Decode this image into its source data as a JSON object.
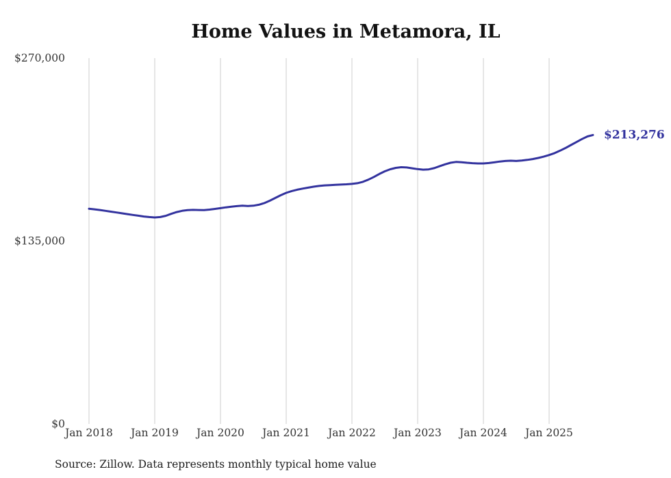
{
  "page": {
    "background_color": "#ffffff"
  },
  "chart": {
    "title": "Home Values in Metamora, IL",
    "end_value_label": "$213,276",
    "source_note": "Source: Zillow. Data represents monthly typical home value",
    "colors": {
      "line": "#32329e",
      "grid": "#cccccc",
      "title": "#121212",
      "tick": "#333333",
      "source": "#1a1a1a"
    }
  },
  "chart_data": {
    "type": "line",
    "title": "Home Values in Metamora, IL",
    "xlabel": "",
    "ylabel": "",
    "ylim": [
      0,
      270000
    ],
    "grid": "vertical-only",
    "legend": "none",
    "x_tick_labels": [
      "Jan 2018",
      "Jan 2019",
      "Jan 2020",
      "Jan 2021",
      "Jan 2022",
      "Jan 2023",
      "Jan 2024",
      "Jan 2025"
    ],
    "y_tick_labels": [
      {
        "label": "$0",
        "value": 0
      },
      {
        "label": "$135,000",
        "value": 135000
      },
      {
        "label": "$270,000",
        "value": 270000
      }
    ],
    "annotation": {
      "text": "$213,276",
      "position": "line-end"
    },
    "source": "Source: Zillow. Data represents monthly typical home value",
    "series": [
      {
        "name": "Monthly typical home value",
        "start_month": "2018-01",
        "frequency": "monthly",
        "values": [
          158800,
          158400,
          157900,
          157300,
          156700,
          156100,
          155500,
          154900,
          154300,
          153700,
          153100,
          152700,
          152400,
          152700,
          153600,
          155100,
          156400,
          157300,
          157800,
          158000,
          157900,
          157800,
          158200,
          158700,
          159300,
          159900,
          160400,
          160800,
          161100,
          160900,
          161100,
          161800,
          163000,
          164800,
          166800,
          168800,
          170600,
          171900,
          172900,
          173700,
          174400,
          175100,
          175700,
          176100,
          176300,
          176500,
          176700,
          176900,
          177200,
          177700,
          178700,
          180300,
          182300,
          184500,
          186500,
          188000,
          189000,
          189500,
          189300,
          188700,
          188100,
          187700,
          187900,
          188800,
          190200,
          191600,
          192800,
          193400,
          193200,
          192800,
          192500,
          192300,
          192300,
          192600,
          193100,
          193700,
          194100,
          194300,
          194100,
          194400,
          194900,
          195500,
          196300,
          197300,
          198500,
          199900,
          201700,
          203700,
          205900,
          208100,
          210300,
          212200,
          213276
        ]
      }
    ]
  }
}
